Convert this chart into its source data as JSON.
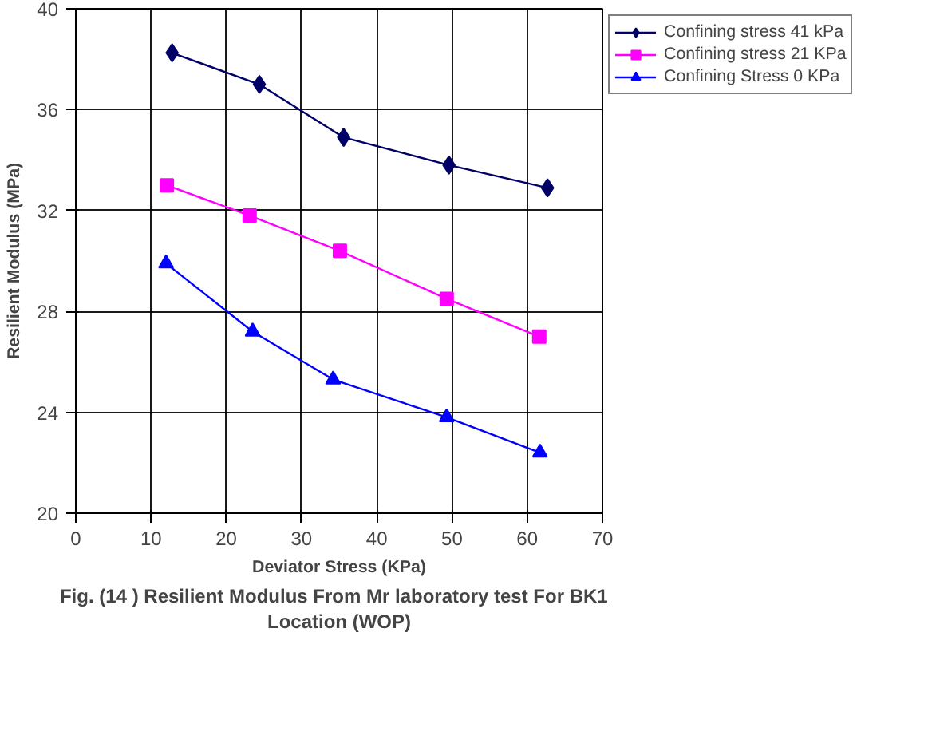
{
  "chart_data": {
    "type": "line",
    "title": "Fig. (14 )  Resilient Modulus From Mr laboratory test For  BK1\nLocation (WOP)",
    "xlabel": "Deviator Stress (KPa)",
    "ylabel": "Resilient Modulus (MPa)",
    "xlim": [
      0,
      70
    ],
    "xticks": [
      0,
      10,
      20,
      30,
      40,
      50,
      60,
      70
    ],
    "ylim": [
      20,
      40
    ],
    "yticks": [
      20,
      24,
      28,
      32,
      36,
      40
    ],
    "grid": true,
    "legend": "right",
    "series": [
      {
        "name": "Confining stress 41 kPa",
        "color": "#000066",
        "marker": "diamond",
        "x": [
          12.8,
          24.4,
          35.6,
          49.6,
          62.7
        ],
        "values": [
          38.25,
          37.0,
          34.9,
          33.8,
          32.9
        ]
      },
      {
        "name": "Confining stress 21 KPa",
        "color": "#ff00ff",
        "marker": "square",
        "x": [
          12.1,
          23.1,
          35.1,
          49.3,
          61.6
        ],
        "values": [
          33.0,
          31.8,
          30.4,
          28.5,
          27.0
        ]
      },
      {
        "name": "Confining Stress 0 KPa",
        "color": "#0000ff",
        "marker": "triangle",
        "x": [
          12.0,
          23.5,
          34.2,
          49.3,
          61.7
        ],
        "values": [
          29.9,
          27.2,
          25.3,
          23.8,
          22.4
        ]
      }
    ]
  }
}
